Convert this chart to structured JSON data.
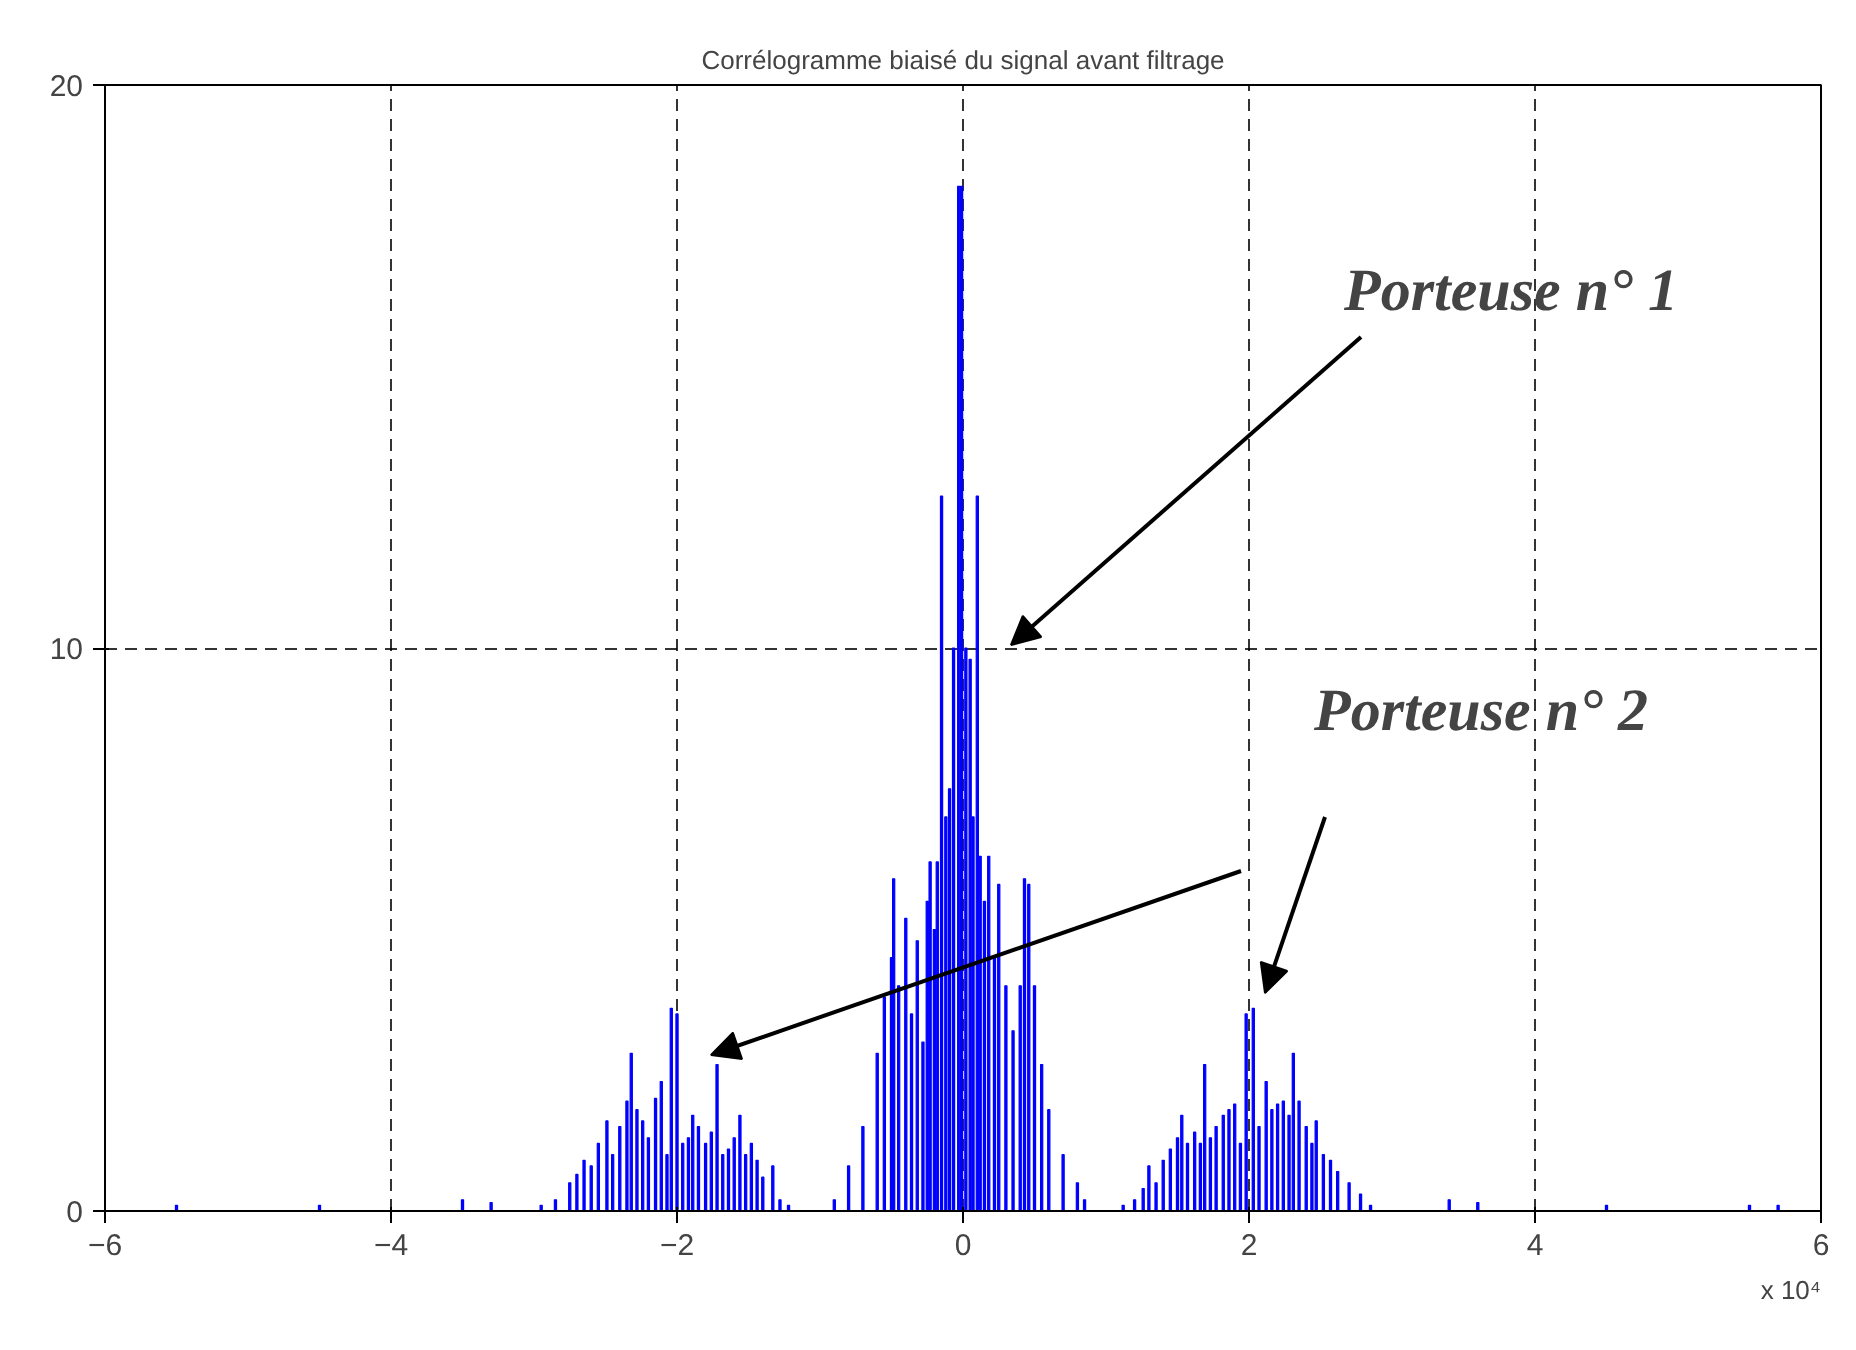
{
  "chart_data": {
    "type": "bar",
    "title": "Corrélogramme biaisé du signal avant filtrage",
    "x": [
      -5.5,
      -4.5,
      -3.5,
      -3.3,
      -2.95,
      -2.85,
      -2.75,
      -2.7,
      -2.65,
      -2.6,
      -2.55,
      -2.49,
      -2.45,
      -2.4,
      -2.35,
      -2.32,
      -2.28,
      -2.24,
      -2.2,
      -2.15,
      -2.11,
      -2.07,
      -2.04,
      -2.0,
      -1.96,
      -1.92,
      -1.89,
      -1.85,
      -1.8,
      -1.76,
      -1.72,
      -1.68,
      -1.64,
      -1.6,
      -1.56,
      -1.52,
      -1.48,
      -1.44,
      -1.4,
      -1.33,
      -1.28,
      -1.22,
      -0.9,
      -0.8,
      -0.7,
      -0.6,
      -0.55,
      -0.5,
      -0.485,
      -0.45,
      -0.4,
      -0.36,
      -0.32,
      -0.28,
      -0.25,
      -0.23,
      -0.2,
      -0.18,
      -0.15,
      -0.12,
      -0.094,
      -0.066,
      -0.03,
      -0.01,
      0.02,
      0.05,
      0.07,
      0.1,
      0.12,
      0.15,
      0.18,
      0.22,
      0.25,
      0.3,
      0.35,
      0.4,
      0.43,
      0.46,
      0.5,
      0.55,
      0.6,
      0.7,
      0.8,
      0.85,
      1.12,
      1.2,
      1.26,
      1.3,
      1.35,
      1.4,
      1.45,
      1.5,
      1.53,
      1.57,
      1.62,
      1.66,
      1.69,
      1.73,
      1.77,
      1.82,
      1.86,
      1.9,
      1.94,
      1.98,
      2.03,
      2.07,
      2.12,
      2.16,
      2.2,
      2.24,
      2.28,
      2.31,
      2.35,
      2.4,
      2.44,
      2.47,
      2.52,
      2.57,
      2.62,
      2.7,
      2.78,
      2.85,
      3.4,
      3.6,
      4.5,
      5.5,
      5.7
    ],
    "values": [
      0.1,
      0.1,
      0.2,
      0.15,
      0.1,
      0.2,
      0.5,
      0.65,
      0.9,
      0.8,
      1.2,
      1.6,
      1.0,
      1.5,
      1.95,
      2.8,
      1.8,
      1.6,
      1.3,
      2.0,
      2.3,
      1.0,
      3.6,
      3.5,
      1.2,
      1.3,
      1.7,
      1.5,
      1.2,
      1.4,
      2.6,
      1.0,
      1.1,
      1.3,
      1.7,
      1.0,
      1.2,
      0.9,
      0.6,
      0.8,
      0.2,
      0.1,
      0.2,
      0.8,
      1.5,
      2.8,
      3.8,
      4.5,
      5.9,
      4.0,
      5.2,
      3.5,
      4.8,
      3.0,
      5.5,
      6.2,
      5.0,
      6.2,
      12.7,
      7.0,
      7.5,
      10.0,
      18.2,
      18.2,
      10.0,
      9.8,
      7.0,
      12.7,
      6.3,
      5.5,
      6.3,
      4.5,
      5.8,
      4.0,
      3.2,
      4.0,
      5.9,
      5.8,
      4.0,
      2.6,
      1.8,
      1.0,
      0.5,
      0.2,
      0.1,
      0.2,
      0.4,
      0.8,
      0.5,
      0.9,
      1.1,
      1.3,
      1.7,
      1.2,
      1.4,
      1.2,
      2.6,
      1.3,
      1.5,
      1.7,
      1.8,
      1.9,
      1.2,
      3.5,
      3.6,
      1.5,
      2.3,
      1.8,
      1.9,
      1.95,
      1.7,
      2.8,
      1.95,
      1.5,
      1.2,
      1.6,
      1.0,
      0.9,
      0.7,
      0.5,
      0.3,
      0.1,
      0.2,
      0.15,
      0.1,
      0.1,
      0.1
    ],
    "color": "#0000ff",
    "xlim": [
      -6,
      6
    ],
    "xticks": [
      -6,
      -4,
      -2,
      0,
      2,
      4,
      6
    ],
    "ylim": [
      0,
      20
    ],
    "yticks": [
      0,
      10,
      20
    ],
    "grid": true,
    "annotations": [
      "Porteuse n° 1",
      "Porteuse n° 2",
      "x 10⁴"
    ]
  }
}
